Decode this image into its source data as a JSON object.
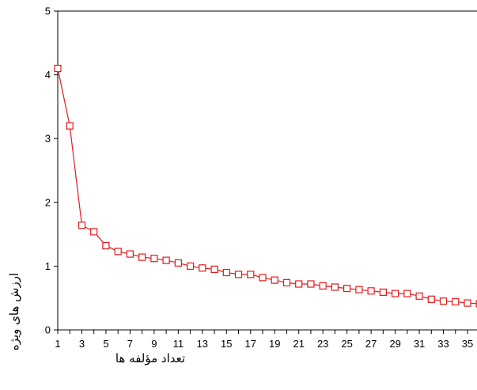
{
  "chart_data": {
    "type": "line",
    "xlabel": "تعداد مؤلفه ها",
    "ylabel": "ارزش های ویژه",
    "ylim": [
      0,
      5
    ],
    "yticks": [
      "0",
      "1",
      "2",
      "3",
      "4",
      "5"
    ],
    "xlim": [
      1,
      36
    ],
    "xticks": [
      "1",
      "3",
      "5",
      "7",
      "9",
      "11",
      "13",
      "15",
      "17",
      "19",
      "21",
      "23",
      "25",
      "27",
      "29",
      "31",
      "33",
      "35"
    ],
    "grid": false,
    "marker": "square",
    "color": "#e31a1c",
    "x": [
      1,
      2,
      3,
      4,
      5,
      6,
      7,
      8,
      9,
      10,
      11,
      12,
      13,
      14,
      15,
      16,
      17,
      18,
      19,
      20,
      21,
      22,
      23,
      24,
      25,
      26,
      27,
      28,
      29,
      30,
      31,
      32,
      33,
      34,
      35,
      36
    ],
    "values": [
      4.1,
      3.2,
      1.64,
      1.54,
      1.32,
      1.23,
      1.19,
      1.14,
      1.12,
      1.09,
      1.05,
      1.0,
      0.97,
      0.95,
      0.9,
      0.87,
      0.87,
      0.82,
      0.78,
      0.74,
      0.72,
      0.72,
      0.69,
      0.67,
      0.65,
      0.63,
      0.61,
      0.59,
      0.57,
      0.57,
      0.53,
      0.48,
      0.45,
      0.44,
      0.42,
      0.41
    ]
  }
}
